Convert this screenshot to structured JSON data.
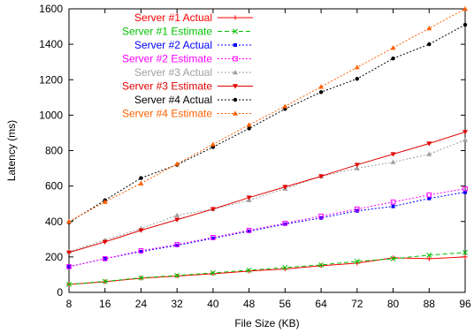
{
  "chart_data": {
    "type": "line",
    "title": "",
    "xlabel": "File Size (KB)",
    "ylabel": "Latency (ms)",
    "xlim": [
      8,
      96
    ],
    "ylim": [
      0,
      1600
    ],
    "xticks": [
      8,
      16,
      24,
      32,
      40,
      48,
      56,
      64,
      72,
      80,
      88,
      96
    ],
    "yticks": [
      0,
      200,
      400,
      600,
      800,
      1000,
      1200,
      1400,
      1600
    ],
    "grid": false,
    "legend_position": "top-left",
    "x": [
      8,
      16,
      24,
      32,
      40,
      48,
      56,
      64,
      72,
      80,
      88,
      96
    ],
    "series": [
      {
        "name": "Server #1 Actual",
        "color": "#ff0000",
        "dash": "solid",
        "marker": "plus",
        "values": [
          45,
          60,
          80,
          92,
          105,
          120,
          132,
          150,
          165,
          195,
          190,
          200
        ]
      },
      {
        "name": "Server #1 Estimate",
        "color": "#00c000",
        "dash": "dashed",
        "marker": "cross",
        "values": [
          45,
          62,
          82,
          95,
          110,
          125,
          140,
          155,
          175,
          190,
          210,
          225
        ]
      },
      {
        "name": "Server #2 Actual",
        "color": "#0000ff",
        "dash": "dotted",
        "marker": "square-filled",
        "values": [
          145,
          190,
          230,
          265,
          305,
          345,
          385,
          420,
          460,
          485,
          530,
          565
        ]
      },
      {
        "name": "Server #2 Estimate",
        "color": "#ff00ff",
        "dash": "dotted",
        "marker": "square-open",
        "values": [
          145,
          190,
          235,
          270,
          310,
          350,
          390,
          430,
          470,
          510,
          550,
          585
        ]
      },
      {
        "name": "Server #3 Actual",
        "color": "#a0a0a0",
        "dash": "dotted",
        "marker": "triangle-filled",
        "values": [
          230,
          295,
          360,
          435,
          470,
          520,
          585,
          655,
          700,
          735,
          780,
          860
        ]
      },
      {
        "name": "Server #3 Estimate",
        "color": "#e00000",
        "dash": "solid",
        "marker": "triangle-down",
        "values": [
          225,
          285,
          350,
          410,
          470,
          535,
          595,
          655,
          720,
          780,
          840,
          905
        ]
      },
      {
        "name": "Server #4 Actual",
        "color": "#000000",
        "dash": "dotted",
        "marker": "circle-filled",
        "values": [
          395,
          520,
          645,
          720,
          820,
          925,
          1035,
          1130,
          1205,
          1320,
          1400,
          1510
        ]
      },
      {
        "name": "Server #4 Estimate",
        "color": "#ff6000",
        "dash": "dotted",
        "marker": "triangle-filled",
        "values": [
          400,
          510,
          615,
          725,
          835,
          945,
          1050,
          1160,
          1270,
          1380,
          1490,
          1600
        ]
      }
    ]
  }
}
